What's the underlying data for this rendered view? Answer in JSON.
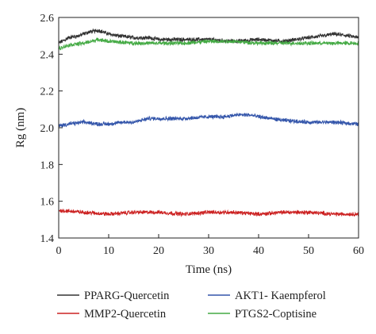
{
  "chart_data": {
    "type": "line",
    "xlabel": "Time (ns)",
    "ylabel": "Rg (nm)",
    "xlim": [
      0,
      60
    ],
    "ylim": [
      1.4,
      2.6
    ],
    "xticks": [
      0,
      10,
      20,
      30,
      40,
      50,
      60
    ],
    "yticks": [
      1.4,
      1.6,
      1.8,
      2.0,
      2.2,
      2.4,
      2.6
    ],
    "xtick_labels": [
      "0",
      "10",
      "20",
      "30",
      "40",
      "50",
      "60"
    ],
    "ytick_labels": [
      "1.4",
      "1.6",
      "1.8",
      "2.0",
      "2.2",
      "2.4",
      "2.6"
    ],
    "grid": false,
    "legend_position": "below",
    "series": [
      {
        "name": "PPARG-Quercetin",
        "color": "#333333",
        "x": [
          0,
          2,
          4,
          6,
          8,
          10,
          12,
          15,
          18,
          20,
          25,
          30,
          35,
          40,
          45,
          50,
          53,
          55,
          58,
          60
        ],
        "y": [
          2.46,
          2.49,
          2.5,
          2.52,
          2.53,
          2.51,
          2.5,
          2.49,
          2.49,
          2.48,
          2.48,
          2.48,
          2.47,
          2.48,
          2.47,
          2.49,
          2.5,
          2.51,
          2.5,
          2.49
        ]
      },
      {
        "name": "MMP2-Quercetin",
        "color": "#cc2222",
        "x": [
          0,
          5,
          10,
          15,
          20,
          25,
          30,
          35,
          40,
          45,
          50,
          55,
          60
        ],
        "y": [
          1.55,
          1.54,
          1.53,
          1.54,
          1.54,
          1.53,
          1.54,
          1.54,
          1.53,
          1.54,
          1.54,
          1.53,
          1.53
        ]
      },
      {
        "name": "AKT1- Kaempferol",
        "color": "#3355aa",
        "x": [
          0,
          2,
          5,
          8,
          10,
          13,
          15,
          18,
          20,
          25,
          30,
          33,
          36,
          38,
          40,
          45,
          50,
          55,
          60
        ],
        "y": [
          2.01,
          2.02,
          2.03,
          2.02,
          2.02,
          2.03,
          2.03,
          2.05,
          2.05,
          2.05,
          2.06,
          2.06,
          2.07,
          2.07,
          2.06,
          2.04,
          2.03,
          2.03,
          2.02
        ]
      },
      {
        "name": "PTGS2-Coptisine",
        "color": "#44aa44",
        "x": [
          0,
          2,
          5,
          8,
          10,
          15,
          20,
          25,
          30,
          35,
          40,
          45,
          50,
          55,
          60
        ],
        "y": [
          2.43,
          2.45,
          2.46,
          2.48,
          2.47,
          2.46,
          2.46,
          2.46,
          2.47,
          2.47,
          2.46,
          2.46,
          2.46,
          2.46,
          2.46
        ]
      }
    ]
  }
}
